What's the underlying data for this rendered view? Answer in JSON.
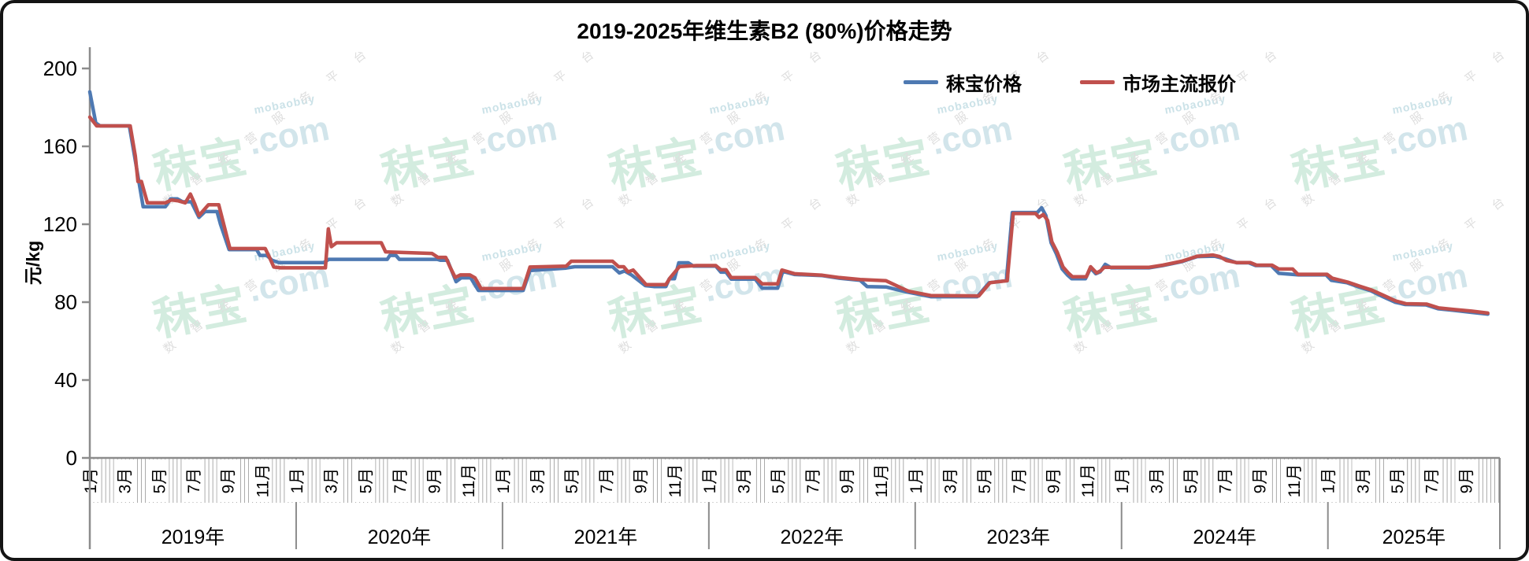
{
  "chart_data": {
    "type": "line",
    "title": "2019-2025年维生素B2 (80%)价格走势",
    "grid": false,
    "legend_position": "top-right",
    "y_axis": {
      "label": "元/kg",
      "min": 0,
      "max": 200,
      "ticks": [
        0,
        40,
        80,
        120,
        160,
        200
      ]
    },
    "x_axis": {
      "total_months": 82,
      "minor_tick_step": 0.2308,
      "month_labels": [
        "1月",
        "3月",
        "5月",
        "7月",
        "9月",
        "11月"
      ],
      "years": [
        {
          "label": "2019年",
          "start": 0,
          "months": 12
        },
        {
          "label": "2020年",
          "start": 12,
          "months": 12
        },
        {
          "label": "2021年",
          "start": 24,
          "months": 12
        },
        {
          "label": "2022年",
          "start": 36,
          "months": 12
        },
        {
          "label": "2023年",
          "start": 48,
          "months": 12
        },
        {
          "label": "2024年",
          "start": 60,
          "months": 12
        },
        {
          "label": "2025年",
          "start": 72,
          "months": 10
        }
      ]
    },
    "series": [
      {
        "name": "秣宝价格",
        "color": "#4e79b2",
        "points": [
          [
            0,
            188
          ],
          [
            0.35,
            172
          ],
          [
            0.6,
            170.5
          ],
          [
            2.3,
            170.5
          ],
          [
            2.6,
            155
          ],
          [
            3.1,
            129
          ],
          [
            4.4,
            129
          ],
          [
            4.7,
            133
          ],
          [
            5.1,
            133
          ],
          [
            5.4,
            131.5
          ],
          [
            5.9,
            131.5
          ],
          [
            6.35,
            123.5
          ],
          [
            6.7,
            126.5
          ],
          [
            7.4,
            126.5
          ],
          [
            7.6,
            120
          ],
          [
            8.1,
            107
          ],
          [
            9.7,
            107
          ],
          [
            9.9,
            104
          ],
          [
            10.3,
            104
          ],
          [
            10.6,
            101.5
          ],
          [
            11,
            100.3
          ],
          [
            13.6,
            100.3
          ],
          [
            13.9,
            102
          ],
          [
            17.3,
            102
          ],
          [
            17.45,
            104
          ],
          [
            17.8,
            104
          ],
          [
            18,
            102
          ],
          [
            20.2,
            102
          ],
          [
            20.4,
            101.5
          ],
          [
            20.8,
            101.5
          ],
          [
            21.3,
            90.5
          ],
          [
            21.6,
            92.5
          ],
          [
            22.15,
            92.5
          ],
          [
            22.6,
            86
          ],
          [
            25.2,
            86
          ],
          [
            25.6,
            96.2
          ],
          [
            26,
            96.5
          ],
          [
            27.7,
            97.5
          ],
          [
            28.2,
            98.2
          ],
          [
            30.4,
            98.2
          ],
          [
            30.8,
            95
          ],
          [
            31.1,
            96
          ],
          [
            31.5,
            94
          ],
          [
            32.3,
            88.5
          ],
          [
            32.8,
            88
          ],
          [
            33.5,
            88
          ],
          [
            33.7,
            92
          ],
          [
            34,
            92
          ],
          [
            34.25,
            100.2
          ],
          [
            34.8,
            100.2
          ],
          [
            35.1,
            98.5
          ],
          [
            36.4,
            98.5
          ],
          [
            36.7,
            95.4
          ],
          [
            37,
            95.4
          ],
          [
            37.3,
            91.8
          ],
          [
            38.7,
            91.8
          ],
          [
            39.1,
            87.2
          ],
          [
            40,
            87.2
          ],
          [
            40.3,
            95.8
          ],
          [
            41,
            94.2
          ],
          [
            42.6,
            93.6
          ],
          [
            43.6,
            92.3
          ],
          [
            44.8,
            91.2
          ],
          [
            45.2,
            88
          ],
          [
            46.3,
            87.8
          ],
          [
            47.5,
            85.2
          ],
          [
            48.9,
            82.8
          ],
          [
            51.6,
            82.8
          ],
          [
            52.3,
            90
          ],
          [
            53.3,
            91
          ],
          [
            53.65,
            126
          ],
          [
            55.1,
            126
          ],
          [
            55.35,
            128.5
          ],
          [
            55.6,
            124.5
          ],
          [
            55.9,
            110.5
          ],
          [
            56.2,
            105
          ],
          [
            56.55,
            97
          ],
          [
            56.85,
            94
          ],
          [
            57.1,
            92
          ],
          [
            57.9,
            92
          ],
          [
            58.2,
            97.5
          ],
          [
            58.5,
            94.6
          ],
          [
            58.75,
            95.5
          ],
          [
            59.05,
            99.4
          ],
          [
            59.4,
            97.6
          ],
          [
            61.6,
            97.6
          ],
          [
            62.4,
            98.8
          ],
          [
            63.5,
            100.8
          ],
          [
            64.4,
            103.4
          ],
          [
            65.4,
            103.6
          ],
          [
            66,
            102.3
          ],
          [
            66.7,
            100.2
          ],
          [
            67.4,
            100.2
          ],
          [
            67.8,
            98.8
          ],
          [
            68.7,
            98.8
          ],
          [
            69.15,
            94.8
          ],
          [
            70.3,
            94
          ],
          [
            71.9,
            94
          ],
          [
            72.2,
            91.2
          ],
          [
            73.1,
            90
          ],
          [
            73.8,
            87.8
          ],
          [
            74.5,
            85.8
          ],
          [
            75.2,
            82.8
          ],
          [
            75.9,
            80
          ],
          [
            76.5,
            78.8
          ],
          [
            77.7,
            78.6
          ],
          [
            78.4,
            76.6
          ],
          [
            79.3,
            75.8
          ],
          [
            80.3,
            74.8
          ],
          [
            81.3,
            73.8
          ]
        ]
      },
      {
        "name": "市场主流报价",
        "color": "#c0504d",
        "points": [
          [
            0,
            175
          ],
          [
            0.4,
            170.5
          ],
          [
            2.35,
            170.5
          ],
          [
            2.65,
            155
          ],
          [
            2.8,
            142
          ],
          [
            3,
            142
          ],
          [
            3.35,
            131
          ],
          [
            4.4,
            131
          ],
          [
            4.75,
            132.5
          ],
          [
            5.15,
            132
          ],
          [
            5.55,
            131
          ],
          [
            5.85,
            135.5
          ],
          [
            6.1,
            130.5
          ],
          [
            6.35,
            124.5
          ],
          [
            6.65,
            127.5
          ],
          [
            6.9,
            130
          ],
          [
            7.5,
            130
          ],
          [
            8.15,
            107.5
          ],
          [
            10.2,
            107.5
          ],
          [
            10.45,
            103
          ],
          [
            10.7,
            98
          ],
          [
            11.1,
            97.6
          ],
          [
            13.7,
            97.6
          ],
          [
            13.87,
            117.6
          ],
          [
            14.05,
            108.5
          ],
          [
            14.35,
            110.5
          ],
          [
            16.95,
            110.5
          ],
          [
            17.2,
            105.8
          ],
          [
            19.9,
            105
          ],
          [
            20.25,
            103
          ],
          [
            20.7,
            103
          ],
          [
            20.95,
            98
          ],
          [
            21.25,
            92.7
          ],
          [
            21.55,
            94
          ],
          [
            22.1,
            94
          ],
          [
            22.4,
            92.5
          ],
          [
            22.75,
            87
          ],
          [
            25.2,
            87
          ],
          [
            25.6,
            98
          ],
          [
            27.7,
            98.5
          ],
          [
            28,
            101
          ],
          [
            30.4,
            101
          ],
          [
            30.75,
            98.2
          ],
          [
            31.05,
            98.2
          ],
          [
            31.3,
            95.5
          ],
          [
            31.6,
            96.5
          ],
          [
            32.35,
            89
          ],
          [
            33.5,
            89
          ],
          [
            33.75,
            92.5
          ],
          [
            34.3,
            98.3
          ],
          [
            35.3,
            98.8
          ],
          [
            36.4,
            98.8
          ],
          [
            36.7,
            96.6
          ],
          [
            37,
            96.6
          ],
          [
            37.3,
            92.6
          ],
          [
            38.7,
            92.6
          ],
          [
            39.1,
            89.4
          ],
          [
            40,
            89.4
          ],
          [
            40.25,
            96.5
          ],
          [
            41,
            94.6
          ],
          [
            42.6,
            93.8
          ],
          [
            43.6,
            92.6
          ],
          [
            44.8,
            91.6
          ],
          [
            46.3,
            91
          ],
          [
            47.6,
            85.6
          ],
          [
            48.9,
            83.4
          ],
          [
            51.7,
            83.2
          ],
          [
            52.35,
            90
          ],
          [
            53.35,
            91
          ],
          [
            53.7,
            125.5
          ],
          [
            55,
            125.5
          ],
          [
            55.2,
            123.5
          ],
          [
            55.45,
            125
          ],
          [
            55.7,
            122
          ],
          [
            55.95,
            111
          ],
          [
            56.25,
            105.8
          ],
          [
            56.6,
            98
          ],
          [
            56.9,
            95
          ],
          [
            57.15,
            93
          ],
          [
            57.95,
            93
          ],
          [
            58.2,
            98.2
          ],
          [
            58.55,
            95
          ],
          [
            58.8,
            96.2
          ],
          [
            59,
            97.9
          ],
          [
            61.6,
            97.9
          ],
          [
            62.4,
            99
          ],
          [
            63.5,
            101
          ],
          [
            64.4,
            103.6
          ],
          [
            65.3,
            104.2
          ],
          [
            65.7,
            103.4
          ],
          [
            66.1,
            101.4
          ],
          [
            66.7,
            100.3
          ],
          [
            67.5,
            100.3
          ],
          [
            67.85,
            99
          ],
          [
            68.75,
            99
          ],
          [
            69.15,
            97
          ],
          [
            69.95,
            97
          ],
          [
            70.25,
            94.3
          ],
          [
            71.95,
            94.3
          ],
          [
            72.25,
            92.3
          ],
          [
            73.15,
            90.3
          ],
          [
            73.85,
            88.2
          ],
          [
            74.55,
            86.2
          ],
          [
            75.25,
            83.4
          ],
          [
            75.95,
            80.6
          ],
          [
            76.55,
            79.2
          ],
          [
            77.75,
            79
          ],
          [
            78.45,
            77
          ],
          [
            79.35,
            76.2
          ],
          [
            80.35,
            75.4
          ],
          [
            81.3,
            74.4
          ]
        ]
      }
    ]
  },
  "watermark": {
    "logo": "秣宝",
    "suffix": ".com",
    "brand": "mobaobuy",
    "tagline": "数智经营服务平台",
    "logo_color": "#d3ecdf",
    "suffix_color": "#d2e5eb",
    "brand_color": "#cbe2e8",
    "tagline_color": "#dedede",
    "grid": {
      "cols": 6,
      "rows": 2
    }
  },
  "colors": {
    "axis": "#8c8c8c",
    "minor_tick": "#ababab",
    "text": "#000000",
    "frame": "#141414",
    "background": "#ffffff"
  }
}
